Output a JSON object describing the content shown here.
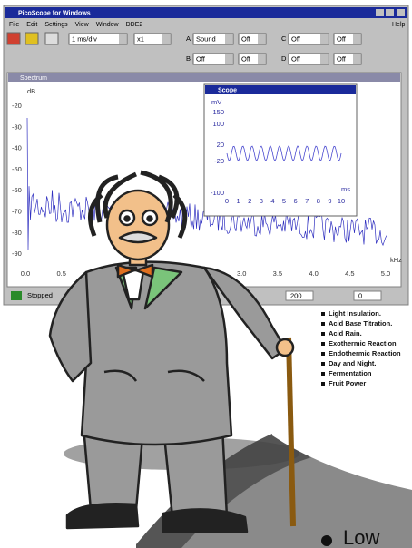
{
  "window": {
    "title": "PicoScope for Windows",
    "menu": [
      "File",
      "Edit",
      "Settings",
      "View",
      "Window",
      "DDE2"
    ],
    "help": "Help",
    "toolbar": {
      "timebase": "1 ms/div",
      "multiplier": "x1",
      "channels": [
        {
          "label": "A",
          "source": "Sound",
          "range": "Off"
        },
        {
          "label": "C",
          "source": "Off",
          "range": "Off"
        },
        {
          "label": "B",
          "source": "Off",
          "range": "Off"
        },
        {
          "label": "D",
          "source": "Off",
          "range": "Off"
        }
      ]
    }
  },
  "spectrum": {
    "title": "Spectrum",
    "y_label": "dB",
    "y_ticks": [
      "-20",
      "-30",
      "-40",
      "-50",
      "-60",
      "-70",
      "-80",
      "-90"
    ],
    "x_ticks": [
      "0.0",
      "0.5",
      "3.0",
      "3.5",
      "4.0",
      "4.5",
      "5.0"
    ],
    "x_unit": "kHz"
  },
  "scope": {
    "title": "Scope",
    "y_label": "mV",
    "y_ticks": [
      "150",
      "100",
      "20",
      "-20",
      "-100"
    ],
    "x_ticks": [
      "0",
      "1",
      "2",
      "3",
      "4",
      "5",
      "6",
      "7",
      "8",
      "9",
      "10"
    ],
    "x_unit": "ms"
  },
  "status": {
    "state": "Stopped",
    "field1": "200",
    "field2": "0"
  },
  "brochure": {
    "items": [
      "Light Insulation.",
      "Acid Base Titration.",
      "Acid Rain.",
      "Exothermic Reaction",
      "Endothermic Reaction",
      "Day and Night.",
      "Fermentation",
      "Fruit Power"
    ],
    "footer": "Low"
  }
}
